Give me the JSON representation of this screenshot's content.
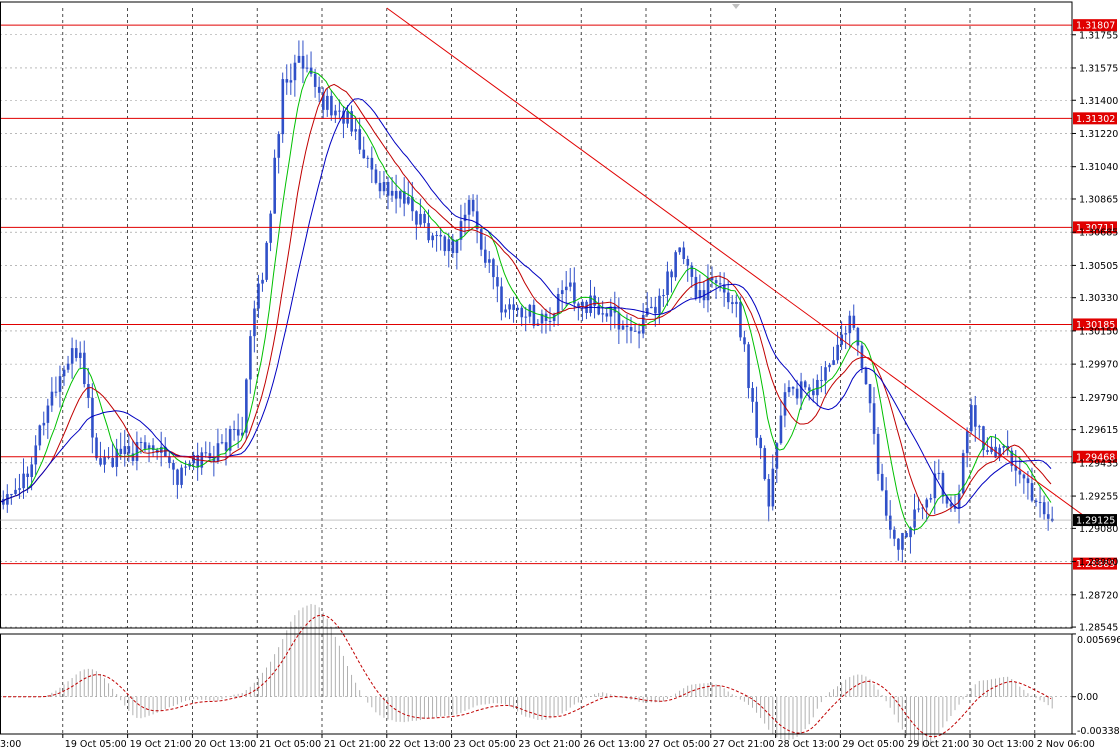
{
  "chart_data": {
    "type": "candlestick",
    "instrument_note": "",
    "price_axis": {
      "ylim": [
        1.2854,
        1.319
      ],
      "ticks": [
        "1.31755",
        "1.31575",
        "1.31400",
        "1.31220",
        "1.31040",
        "1.30865",
        "1.30685",
        "1.30505",
        "1.30330",
        "1.30150",
        "1.29970",
        "1.29790",
        "1.29615",
        "1.29435",
        "1.29255",
        "1.29080",
        "1.28900",
        "1.28720",
        "1.28545"
      ],
      "tick_values": [
        1.31755,
        1.31575,
        1.314,
        1.3122,
        1.3104,
        1.30865,
        1.30685,
        1.30505,
        1.3033,
        1.3015,
        1.2997,
        1.2979,
        1.29615,
        1.29435,
        1.29255,
        1.2908,
        1.289,
        1.2872,
        1.28545
      ]
    },
    "time_axis": {
      "labels": [
        "3:00",
        "19 Oct 05:00",
        "19 Oct 21:00",
        "20 Oct 13:00",
        "21 Oct 05:00",
        "21 Oct 21:00",
        "22 Oct 13:00",
        "23 Oct 05:00",
        "23 Oct 21:00",
        "26 Oct 13:00",
        "27 Oct 05:00",
        "27 Oct 21:00",
        "28 Oct 13:00",
        "29 Oct 05:00",
        "29 Oct 21:00",
        "30 Oct 13:00",
        "2 Nov 06:00"
      ],
      "label_bar_index": [
        0,
        16,
        32,
        48,
        64,
        80,
        96,
        112,
        128,
        144,
        160,
        176,
        192,
        208,
        224,
        240,
        256
      ]
    },
    "horizontal_levels": [
      {
        "label": "1.31807",
        "value": 1.31807
      },
      {
        "label": "1.31302",
        "value": 1.31302
      },
      {
        "label": "1.30711",
        "value": 1.30711
      },
      {
        "label": "1.30185",
        "value": 1.30185
      },
      {
        "label": "1.29468",
        "value": 1.29468
      },
      {
        "label": "1.28889",
        "value": 1.28889
      }
    ],
    "current_price": {
      "label": "1.29125",
      "value": 1.29125
    },
    "trendline": {
      "from": {
        "bar": 96,
        "price": 1.319
      },
      "to": {
        "bar": 268,
        "price": 1.2915
      }
    },
    "close_anchors": [
      [
        0,
        1.2925
      ],
      [
        6,
        1.2935
      ],
      [
        12,
        1.2975
      ],
      [
        16,
        1.2995
      ],
      [
        20,
        1.3005
      ],
      [
        24,
        1.2945
      ],
      [
        28,
        1.2945
      ],
      [
        34,
        1.295
      ],
      [
        40,
        1.2955
      ],
      [
        44,
        1.2935
      ],
      [
        48,
        1.2945
      ],
      [
        54,
        1.295
      ],
      [
        60,
        1.2965
      ],
      [
        62,
        1.301
      ],
      [
        66,
        1.306
      ],
      [
        70,
        1.315
      ],
      [
        74,
        1.316
      ],
      [
        78,
        1.3145
      ],
      [
        82,
        1.3135
      ],
      [
        86,
        1.313
      ],
      [
        90,
        1.311
      ],
      [
        94,
        1.3095
      ],
      [
        100,
        1.3085
      ],
      [
        106,
        1.307
      ],
      [
        112,
        1.306
      ],
      [
        116,
        1.3085
      ],
      [
        120,
        1.3055
      ],
      [
        124,
        1.303
      ],
      [
        130,
        1.3025
      ],
      [
        136,
        1.302
      ],
      [
        140,
        1.304
      ],
      [
        144,
        1.303
      ],
      [
        150,
        1.3025
      ],
      [
        156,
        1.3015
      ],
      [
        162,
        1.3025
      ],
      [
        168,
        1.306
      ],
      [
        172,
        1.3035
      ],
      [
        176,
        1.304
      ],
      [
        182,
        1.303
      ],
      [
        186,
        1.2975
      ],
      [
        190,
        1.2925
      ],
      [
        194,
        1.2985
      ],
      [
        200,
        1.298
      ],
      [
        206,
        1.3
      ],
      [
        210,
        1.302
      ],
      [
        214,
        1.299
      ],
      [
        218,
        1.2925
      ],
      [
        222,
        1.2895
      ],
      [
        226,
        1.292
      ],
      [
        232,
        1.2935
      ],
      [
        236,
        1.2915
      ],
      [
        240,
        1.2975
      ],
      [
        244,
        1.2945
      ],
      [
        248,
        1.2955
      ],
      [
        252,
        1.2935
      ],
      [
        256,
        1.2925
      ],
      [
        260,
        1.2912
      ]
    ],
    "moving_averages": [
      {
        "color": "#00c000",
        "period": 8
      },
      {
        "color": "#c00000",
        "period": 14
      },
      {
        "color": "#0000c0",
        "period": 21
      }
    ],
    "oscillator": {
      "ylim": [
        -0.00338,
        0.00569
      ],
      "ticks": [
        "0.005696",
        "0.00",
        "-0.00338"
      ],
      "tick_values": [
        0.005696,
        0.0,
        -0.00338
      ],
      "histogram_color": "#b0b0b0",
      "signal_color": "#c00000"
    },
    "colors": {
      "candle": "#3050c8",
      "level": "#e00000",
      "grid": "#909090",
      "current_label_bg": "#000000"
    }
  }
}
